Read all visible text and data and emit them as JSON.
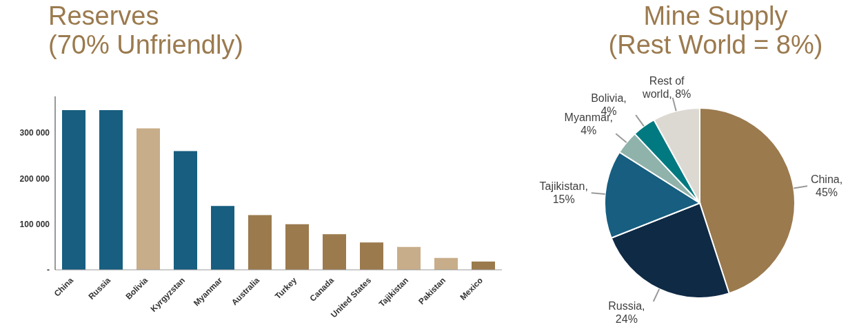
{
  "chart_data": [
    {
      "type": "bar",
      "title": "Reserves\n(70% Unfriendly)",
      "categories": [
        "China",
        "Russia",
        "Bolivia",
        "Kyrgyzstan",
        "Myanmar",
        "Australia",
        "Turkey",
        "Canada",
        "United States",
        "Tajikistan",
        "Pakistan",
        "Mexico"
      ],
      "values": [
        350000,
        350000,
        310000,
        260000,
        140000,
        120000,
        100000,
        78000,
        60000,
        50000,
        26000,
        18000
      ],
      "colors": [
        "#175e80",
        "#175e80",
        "#c8ad8a",
        "#175e80",
        "#175e80",
        "#9b7a4e",
        "#9b7a4e",
        "#9b7a4e",
        "#9b7a4e",
        "#c8ad8a",
        "#c8ad8a",
        "#9b7a4e"
      ],
      "ylim": [
        0,
        380000
      ],
      "yticks": [
        {
          "value": 0,
          "label": "-"
        },
        {
          "value": 100000,
          "label": "100 000"
        },
        {
          "value": 200000,
          "label": "200 000"
        },
        {
          "value": 300000,
          "label": "300 000"
        }
      ],
      "grid": false,
      "legend": false
    },
    {
      "type": "pie",
      "title": "Mine Supply\n(Rest World = 8%)",
      "categories": [
        "China",
        "Russia",
        "Tajikistan",
        "Myanmar",
        "Bolivia",
        "Rest of world"
      ],
      "values": [
        45,
        24,
        15,
        4,
        4,
        8
      ],
      "colors": [
        "#9b7a4e",
        "#0f2a45",
        "#175e80",
        "#8fb3ab",
        "#007a80",
        "#dcd9d3"
      ],
      "value_labels": [
        ", 45%",
        ", 24%",
        ", 15%",
        ", 4%",
        ", 4%",
        ", 8%"
      ],
      "legend": false
    }
  ]
}
